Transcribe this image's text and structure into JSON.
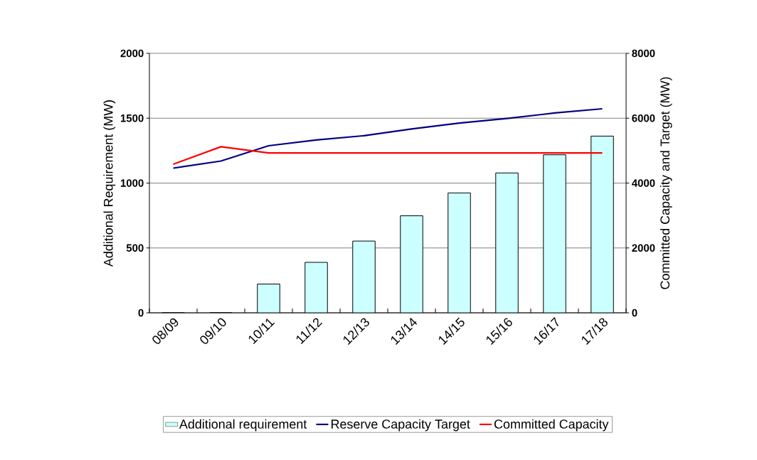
{
  "chart_data": {
    "type": "bar",
    "xlabel": null,
    "ylabel": "Additional Requirement (MW)",
    "y2label": "Committed Capacity and Target (MW)",
    "categories": [
      "08/09",
      "09/10",
      "10/11",
      "11/12",
      "12/13",
      "13/14",
      "14/15",
      "15/16",
      "16/17",
      "17/18"
    ],
    "series": [
      {
        "name": "Additional requirement",
        "color": "#ccffff",
        "values": [
          0,
          0,
          222,
          389,
          553,
          748,
          924,
          1078,
          1218,
          1362
        ]
      },
      {
        "name": "Reserve Capacity Target",
        "type": "line",
        "axis": "y2",
        "color": "#000080",
        "values": [
          4460,
          4680,
          5150,
          5330,
          5460,
          5670,
          5850,
          5990,
          6160,
          6290
        ]
      },
      {
        "name": "Committed Capacity",
        "type": "line",
        "axis": "y2",
        "color": "#ff0000",
        "values": [
          4580,
          5120,
          4930,
          4930,
          4930,
          4930,
          4930,
          4930,
          4930,
          4930
        ]
      }
    ],
    "ylim": [
      0,
      2000
    ],
    "yticks": [
      0,
      500,
      1000,
      1500,
      2000
    ],
    "y2lim": [
      0,
      8000
    ],
    "y2ticks": [
      0,
      2000,
      4000,
      6000,
      8000
    ],
    "grid": "y",
    "legend": "bottom"
  }
}
